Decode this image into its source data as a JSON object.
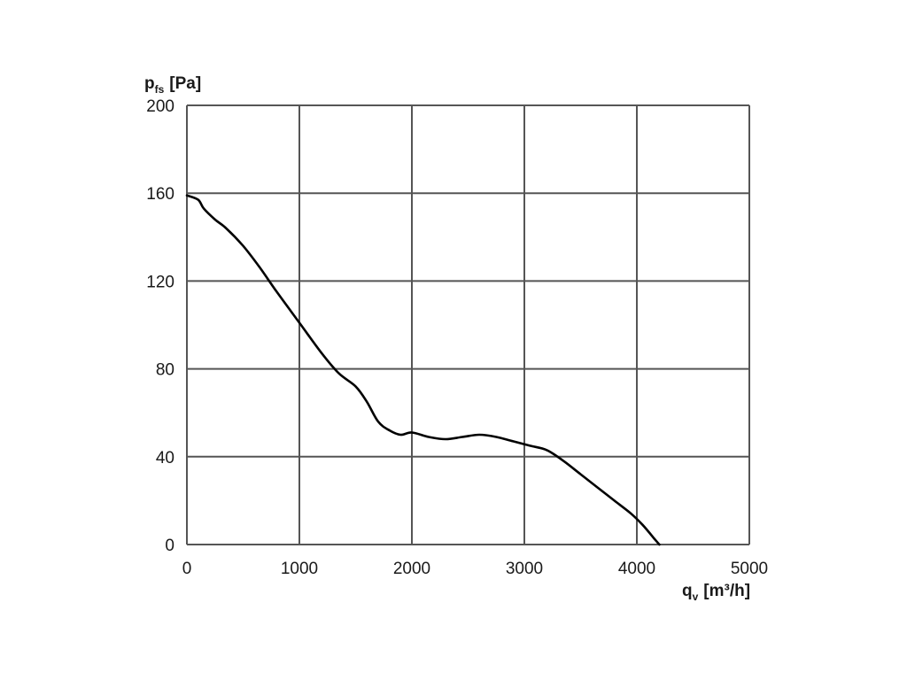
{
  "chart_data": {
    "type": "line",
    "title": "",
    "ylabel": {
      "symbol": "p",
      "subscript": "fs",
      "unit": "[Pa]"
    },
    "xlabel": {
      "symbol": "q",
      "subscript": "v",
      "unit": "[m³/h]"
    },
    "xlim": [
      0,
      5000
    ],
    "ylim": [
      0,
      200
    ],
    "x_ticks": [
      0,
      1000,
      2000,
      3000,
      4000,
      5000
    ],
    "y_ticks": [
      0,
      40,
      80,
      120,
      160,
      200
    ],
    "grid": true,
    "legend": "none",
    "series": [
      {
        "line_color": "#000000",
        "x": [
          0,
          100,
          150,
          250,
          350,
          500,
          650,
          800,
          1000,
          1200,
          1350,
          1500,
          1600,
          1700,
          1800,
          1900,
          2000,
          2150,
          2300,
          2450,
          2600,
          2750,
          2900,
          3050,
          3200,
          3350,
          3500,
          3650,
          3800,
          3950,
          4050,
          4150,
          4200
        ],
        "y": [
          159,
          157,
          153,
          148,
          144,
          136,
          126,
          115,
          101,
          87,
          78,
          72,
          65,
          56,
          52,
          50,
          51,
          49,
          48,
          49,
          50,
          49,
          47,
          45,
          43,
          38,
          32,
          26,
          20,
          14,
          9,
          3,
          0
        ]
      }
    ]
  }
}
